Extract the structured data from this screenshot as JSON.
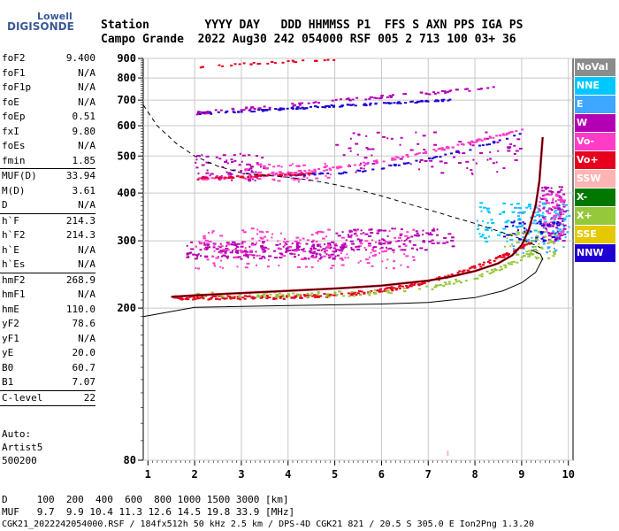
{
  "logo": {
    "line1": "Lowell",
    "line2": "DIGISONDE"
  },
  "header": {
    "row1": "Station        YYYY DAY   DDD HHMMSS P1  FFS S AXN PPS IGA PS",
    "row2": "Campo Grande  2022 Aug30 242 054000 RSF 005 2 713 100 03+ 36"
  },
  "params": [
    {
      "k": "foF2",
      "v": "9.400"
    },
    {
      "k": "foF1",
      "v": "N/A"
    },
    {
      "k": "foF1p",
      "v": "N/A"
    },
    {
      "k": "foE",
      "v": "N/A"
    },
    {
      "k": "foEp",
      "v": "0.51"
    },
    {
      "k": "fxI",
      "v": "9.80"
    },
    {
      "k": "foEs",
      "v": "N/A"
    },
    {
      "k": "fmin",
      "v": "1.85"
    },
    {
      "k": "SEP"
    },
    {
      "k": "MUF(D)",
      "v": "33.94"
    },
    {
      "k": "M(D)",
      "v": "3.61"
    },
    {
      "k": "D",
      "v": "N/A"
    },
    {
      "k": "SEP"
    },
    {
      "k": "h`F",
      "v": "214.3"
    },
    {
      "k": "h`F2",
      "v": "214.3"
    },
    {
      "k": "h`E",
      "v": "N/A"
    },
    {
      "k": "h`Es",
      "v": "N/A"
    },
    {
      "k": "SEP"
    },
    {
      "k": "hmF2",
      "v": "268.9"
    },
    {
      "k": "hmF1",
      "v": "N/A"
    },
    {
      "k": "hmE",
      "v": "110.0"
    },
    {
      "k": "yF2",
      "v": "78.6"
    },
    {
      "k": "yF1",
      "v": "N/A"
    },
    {
      "k": "yE",
      "v": "20.0"
    },
    {
      "k": "B0",
      "v": "60.7"
    },
    {
      "k": "B1",
      "v": "7.07"
    },
    {
      "k": "SEP"
    },
    {
      "k": "C-level",
      "v": "22"
    },
    {
      "k": "SEP"
    }
  ],
  "auto": {
    "l1": "Auto:",
    "l2": "Artist5",
    "l3": "500200"
  },
  "legend": [
    {
      "label": "NoVal",
      "color": "#8c8c8c"
    },
    {
      "label": "NNE",
      "color": "#00c8ff"
    },
    {
      "label": "E",
      "color": "#3fa7ff"
    },
    {
      "label": "W",
      "color": "#b400b4"
    },
    {
      "label": "Vo-",
      "color": "#ff3cc8"
    },
    {
      "label": "Vo+",
      "color": "#e6001e"
    },
    {
      "label": "SSW",
      "color": "#ffb4b4"
    },
    {
      "label": "X-",
      "color": "#007800"
    },
    {
      "label": "X+",
      "color": "#96c83c"
    },
    {
      "label": "SSE",
      "color": "#e6c800"
    },
    {
      "label": "NNW",
      "color": "#1e00d2"
    }
  ],
  "bottom": {
    "d_line": "D     100  200  400  600  800 1000 1500 3000 [km]",
    "muf_line": "MUF   9.7  9.9 10.4 11.3 12.6 14.5 19.8 33.9 [MHz]",
    "footer": "CGK21_2022242054000.RSF / 184fx512h 50 kHz 2.5 km / DPS-4D CGK21 821 / 20.5 S 305.0 E Ion2Png 1.3.20"
  },
  "chart_data": {
    "type": "scatter",
    "xlim": [
      0.9,
      10.1
    ],
    "ylim": [
      80,
      900
    ],
    "y_scale": "log",
    "x_ticks": [
      1,
      2,
      3,
      4,
      5,
      6,
      7,
      8,
      9,
      10
    ],
    "y_ticks": [
      80,
      200,
      300,
      400,
      500,
      600,
      700,
      800,
      900
    ],
    "grid": true,
    "trace_F2": {
      "x": [
        1.5,
        2,
        3,
        4,
        5,
        6,
        7,
        7.5,
        8,
        8.5,
        8.8,
        9.0,
        9.15,
        9.3,
        9.38,
        9.42,
        9.45
      ],
      "y": [
        214,
        216,
        219,
        222,
        225,
        229,
        236,
        242,
        250,
        262,
        275,
        292,
        320,
        370,
        430,
        500,
        560
      ]
    },
    "profile": {
      "x": [
        0.9,
        2,
        4,
        6,
        7,
        8,
        8.6,
        9.0,
        9.3,
        9.4,
        9.45,
        9.4,
        9.2
      ],
      "y": [
        190,
        201,
        203,
        205,
        207,
        213,
        222,
        233,
        248,
        262,
        269,
        277,
        284
      ]
    },
    "muf_curve": {
      "x": [
        0.9,
        1.2,
        1.6,
        2,
        2.5,
        3,
        3.5,
        4,
        4.5,
        5,
        5.5,
        6,
        6.5,
        7,
        7.5,
        8,
        8.5,
        9.0,
        9.4
      ],
      "y": [
        680,
        600,
        540,
        500,
        470,
        452,
        445,
        440,
        432,
        421,
        408,
        393,
        377,
        362,
        347,
        333,
        318,
        303,
        288
      ]
    },
    "echo_bands": [
      {
        "color": "#b400b4",
        "x0": 1.8,
        "x1": 5.2,
        "y0": 270,
        "y1": 300,
        "n": 220
      },
      {
        "color": "#ff3cc8",
        "x0": 2.0,
        "x1": 6.8,
        "y0": 255,
        "y1": 325,
        "n": 200
      },
      {
        "color": "#b400b4",
        "x0": 5.0,
        "x1": 7.5,
        "y0": 285,
        "y1": 325,
        "n": 110
      },
      {
        "color": "#00c8ff",
        "x0": 8.0,
        "x1": 10.0,
        "y0": 300,
        "y1": 380,
        "n": 120
      },
      {
        "color": "#3fa7ff",
        "x0": 8.8,
        "x1": 10.0,
        "y0": 280,
        "y1": 370,
        "n": 80
      },
      {
        "color": "#b400b4",
        "x0": 9.4,
        "x1": 9.9,
        "y0": 300,
        "y1": 420,
        "n": 80
      },
      {
        "color": "#ff3cc8",
        "x0": 9.3,
        "x1": 9.9,
        "y0": 300,
        "y1": 400,
        "n": 60
      },
      {
        "color": "#1e00d2",
        "x0": 8.6,
        "x1": 9.8,
        "y0": 300,
        "y1": 340,
        "n": 40
      },
      {
        "color": "#96c83c",
        "x0": 8.6,
        "x1": 9.7,
        "y0": 270,
        "y1": 320,
        "n": 50
      },
      {
        "color": "#b400b4",
        "x0": 2.0,
        "x1": 3.5,
        "y0": 430,
        "y1": 510,
        "n": 70
      },
      {
        "color": "#ff3cc8",
        "x0": 3.0,
        "x1": 5.0,
        "y0": 430,
        "y1": 480,
        "n": 60
      },
      {
        "color": "#b400b4",
        "x0": 5.0,
        "x1": 9.0,
        "y0": 450,
        "y1": 580,
        "n": 90
      }
    ],
    "echo_traces": [
      {
        "color": "#e6001e",
        "x0": 1.5,
        "x1": 9.2,
        "y_at_x0": 214,
        "y_at_x1": 300,
        "curve": 4,
        "n": 260,
        "spread": 5
      },
      {
        "color": "#96c83c",
        "x0": 2.0,
        "x1": 9.6,
        "y_at_x0": 218,
        "y_at_x1": 300,
        "curve": 5,
        "n": 140,
        "spread": 7
      },
      {
        "color": "#ff3cc8",
        "x0": 2.0,
        "x1": 9.0,
        "y_at_x0": 440,
        "y_at_x1": 590,
        "curve": 2,
        "n": 160,
        "spread": 8
      },
      {
        "color": "#1e00d2",
        "x0": 4.0,
        "x1": 9.0,
        "y_at_x0": 448,
        "y_at_x1": 575,
        "curve": 2,
        "n": 60,
        "spread": 6
      },
      {
        "color": "#e6001e",
        "x0": 2.0,
        "x1": 4.5,
        "y_at_x0": 438,
        "y_at_x1": 452,
        "curve": 1,
        "n": 50,
        "spread": 4
      },
      {
        "color": "#1e00d2",
        "x0": 2.0,
        "x1": 7.5,
        "y_at_x0": 648,
        "y_at_x1": 705,
        "curve": 1,
        "n": 120,
        "spread": 8
      },
      {
        "color": "#b400b4",
        "x0": 2.0,
        "x1": 8.5,
        "y_at_x0": 650,
        "y_at_x1": 760,
        "curve": 1,
        "n": 90,
        "spread": 12
      },
      {
        "color": "#e6001e",
        "x0": 2.0,
        "x1": 5.0,
        "y_at_x0": 860,
        "y_at_x1": 900,
        "curve": 1,
        "n": 30,
        "spread": 10
      }
    ],
    "isolated_marks": [
      {
        "x": 7.4,
        "y": 82,
        "color": "#ffb4b4"
      }
    ]
  }
}
